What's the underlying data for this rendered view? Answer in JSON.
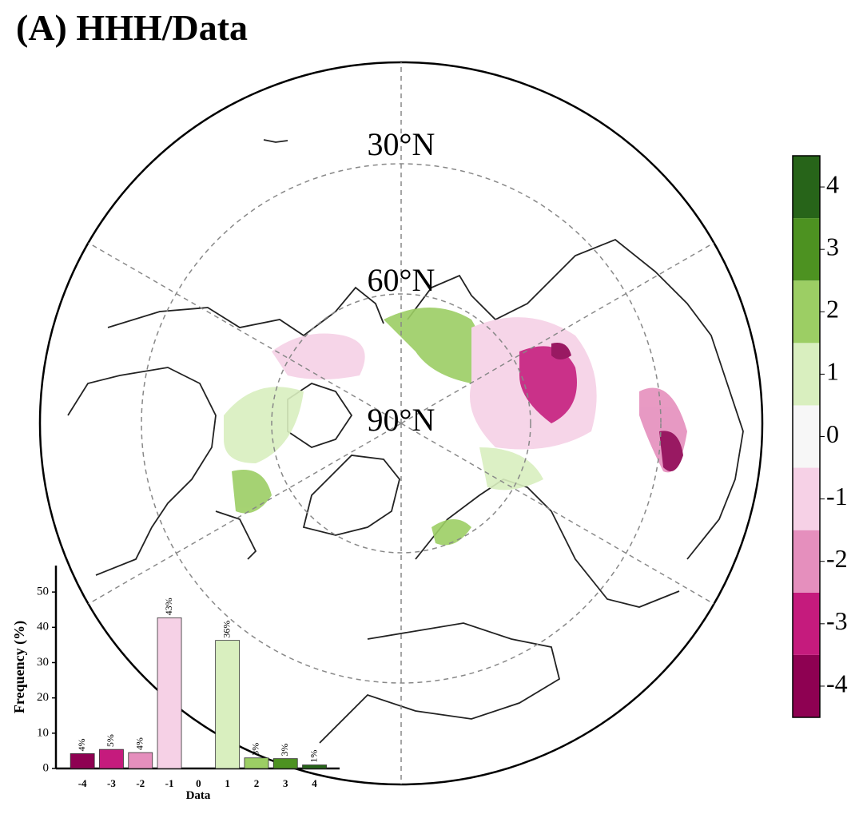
{
  "title": "(A) HHH/Data",
  "map": {
    "lat_labels": [
      "30°N",
      "60°N",
      "90°N"
    ],
    "colorbar": {
      "lim": [
        -4.5,
        4.5
      ],
      "ticks": [
        -4,
        -3,
        -2,
        -1,
        0,
        1,
        2,
        3,
        4
      ],
      "colors": [
        "#8e0152",
        "#c51b7d",
        "#e58fbd",
        "#f6d1e6",
        "#f7f7f7",
        "#d9efbf",
        "#9cce64",
        "#4d9221",
        "#276419"
      ]
    }
  },
  "chart_data": {
    "type": "bar",
    "xlabel": "Data",
    "ylabel": "Frequency (%)",
    "categories": [
      -4,
      -3,
      -2,
      -1,
      0,
      1,
      2,
      3,
      4
    ],
    "values": [
      4.2,
      5.4,
      4.5,
      42.7,
      0,
      36.3,
      3.0,
      2.8,
      1.0
    ],
    "value_labels": [
      "4%",
      "5%",
      "4%",
      "43%",
      null,
      "36%",
      "3%",
      "3%",
      "1%"
    ],
    "colors": [
      "#8e0152",
      "#c51b7d",
      "#e58fbd",
      "#f6d1e6",
      "#f7f7f7",
      "#d9efbf",
      "#9cce64",
      "#4d9221",
      "#276419"
    ],
    "ylim": [
      0,
      57.5
    ],
    "yticks": [
      0,
      10,
      20,
      30,
      40,
      50
    ]
  }
}
